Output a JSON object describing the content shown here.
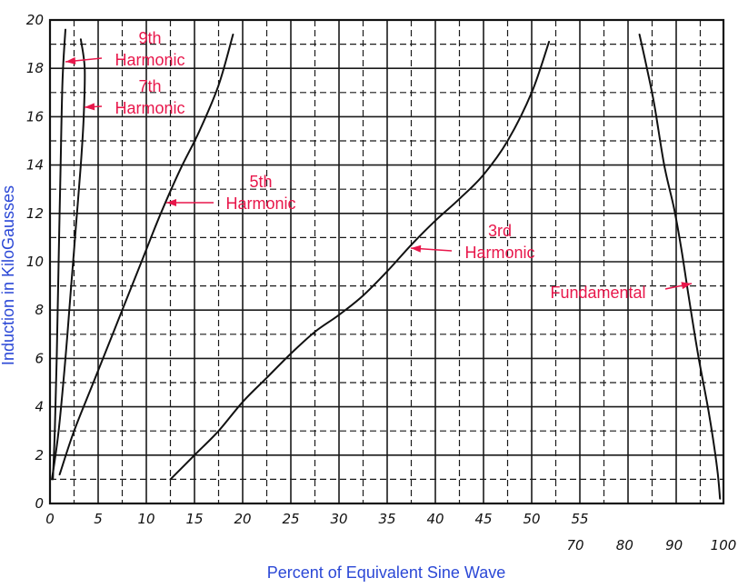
{
  "chart_data": {
    "type": "line",
    "title": "",
    "xlabel": "Percent of Equivalent Sine Wave",
    "ylabel": "Induction in KiloGausses",
    "xlim": [
      0,
      100
    ],
    "ylim": [
      0,
      20
    ],
    "x_axis_break": {
      "first_segment": [
        0,
        55
      ],
      "second_segment": [
        70,
        100
      ]
    },
    "grid": "on",
    "x_ticks_primary": [
      "0",
      "5",
      "10",
      "15",
      "20",
      "25",
      "30",
      "35",
      "40",
      "45",
      "50",
      "55"
    ],
    "x_ticks_secondary": [
      "70",
      "80",
      "90",
      "100"
    ],
    "y_ticks": [
      "0",
      "2",
      "4",
      "6",
      "8",
      "10",
      "12",
      "14",
      "16",
      "18",
      "20"
    ],
    "series": [
      {
        "name": "9th Harmonic",
        "points": [
          [
            0.3,
            1
          ],
          [
            0.5,
            3
          ],
          [
            0.7,
            6
          ],
          [
            0.9,
            10
          ],
          [
            1.1,
            14
          ],
          [
            1.3,
            17.5
          ],
          [
            1.6,
            19.6
          ]
        ]
      },
      {
        "name": "7th Harmonic",
        "points": [
          [
            0.2,
            1
          ],
          [
            0.9,
            3
          ],
          [
            1.6,
            6
          ],
          [
            2.2,
            9
          ],
          [
            2.7,
            11.5
          ],
          [
            3.2,
            14
          ],
          [
            3.5,
            16
          ],
          [
            3.6,
            18
          ],
          [
            3.2,
            19.2
          ]
        ]
      },
      {
        "name": "5th Harmonic",
        "points": [
          [
            1.0,
            1.2
          ],
          [
            2.5,
            3
          ],
          [
            4.5,
            5
          ],
          [
            7.0,
            7.5
          ],
          [
            9.5,
            10
          ],
          [
            11.5,
            12
          ],
          [
            13.5,
            13.8
          ],
          [
            15.5,
            15.4
          ],
          [
            17.5,
            17.3
          ],
          [
            19.0,
            19.4
          ]
        ]
      },
      {
        "name": "3rd Harmonic",
        "points": [
          [
            12.5,
            1
          ],
          [
            15,
            2
          ],
          [
            17.5,
            3
          ],
          [
            20,
            4.2
          ],
          [
            22.5,
            5.2
          ],
          [
            25,
            6.2
          ],
          [
            27.5,
            7.1
          ],
          [
            30,
            7.8
          ],
          [
            32.5,
            8.6
          ],
          [
            35,
            9.6
          ],
          [
            37.5,
            10.7
          ],
          [
            40,
            11.7
          ],
          [
            42.5,
            12.6
          ],
          [
            45,
            13.6
          ],
          [
            47.5,
            15
          ],
          [
            50,
            17
          ],
          [
            51.8,
            19.1
          ]
        ]
      },
      {
        "name": "Fundamental",
        "points": [
          [
            83.0,
            19.4
          ],
          [
            84.5,
            18
          ],
          [
            86,
            16.5
          ],
          [
            88,
            14
          ],
          [
            90,
            12.2
          ],
          [
            91.5,
            10.5
          ],
          [
            93,
            8.5
          ],
          [
            95,
            6
          ],
          [
            97,
            3.8
          ],
          [
            98.7,
            1.5
          ],
          [
            99.3,
            0.2
          ]
        ]
      }
    ],
    "annotations": [
      {
        "line1": "9th",
        "line2": "Harmonic"
      },
      {
        "line1": "7th",
        "line2": "Harmonic"
      },
      {
        "line1": "5th",
        "line2": "Harmonic"
      },
      {
        "line1": "3rd",
        "line2": "Harmonic"
      },
      {
        "line1": "Fundamental",
        "line2": ""
      }
    ]
  }
}
